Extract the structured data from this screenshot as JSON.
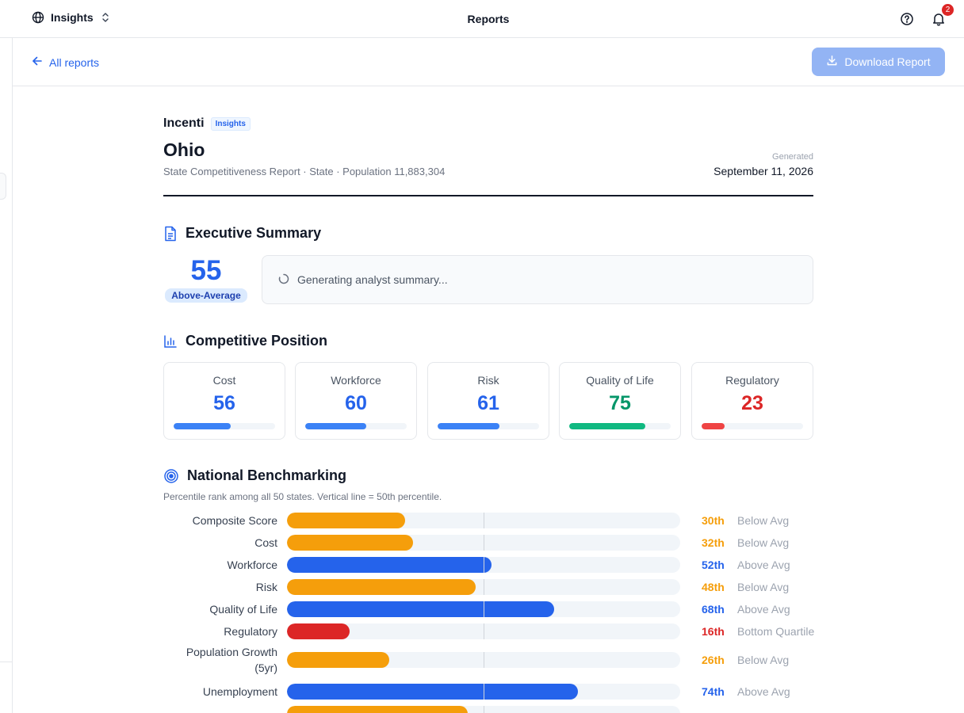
{
  "topbar": {
    "workspace": "Insights",
    "title": "Reports",
    "notifications": "2"
  },
  "subbar": {
    "back": "All reports",
    "download": "Download Report"
  },
  "report": {
    "brand": "Incenti",
    "brand_tag": "Insights",
    "state": "Ohio",
    "meta": "State Competitiveness Report · State · Population 11,883,304",
    "generated_label": "Generated",
    "generated_date": "September 11, 2026"
  },
  "executive": {
    "title": "Executive Summary",
    "score": "55",
    "rating": "Above-Average",
    "summary_status": "Generating analyst summary..."
  },
  "competitive": {
    "title": "Competitive Position",
    "cards": [
      {
        "label": "Cost",
        "value": 56,
        "color": "#2563eb",
        "bar_color": "#3b82f6"
      },
      {
        "label": "Workforce",
        "value": 60,
        "color": "#2563eb",
        "bar_color": "#3b82f6"
      },
      {
        "label": "Risk",
        "value": 61,
        "color": "#2563eb",
        "bar_color": "#3b82f6"
      },
      {
        "label": "Quality of Life",
        "value": 75,
        "color": "#059669",
        "bar_color": "#10b981"
      },
      {
        "label": "Regulatory",
        "value": 23,
        "color": "#dc2626",
        "bar_color": "#ef4444"
      }
    ]
  },
  "benchmark": {
    "title": "National Benchmarking",
    "note": "Percentile rank among all 50 states. Vertical line = 50th percentile.",
    "rows": [
      {
        "label": "Composite Score",
        "value": 30,
        "pct": "30th",
        "band": "Below Avg",
        "color": "#f59e0b",
        "text_color": "#f59e0b"
      },
      {
        "label": "Cost",
        "value": 32,
        "pct": "32th",
        "band": "Below Avg",
        "color": "#f59e0b",
        "text_color": "#f59e0b"
      },
      {
        "label": "Workforce",
        "value": 52,
        "pct": "52th",
        "band": "Above Avg",
        "color": "#2563eb",
        "text_color": "#2563eb"
      },
      {
        "label": "Risk",
        "value": 48,
        "pct": "48th",
        "band": "Below Avg",
        "color": "#f59e0b",
        "text_color": "#f59e0b"
      },
      {
        "label": "Quality of Life",
        "value": 68,
        "pct": "68th",
        "band": "Above Avg",
        "color": "#2563eb",
        "text_color": "#2563eb"
      },
      {
        "label": "Regulatory",
        "value": 16,
        "pct": "16th",
        "band": "Bottom Quartile",
        "color": "#dc2626",
        "text_color": "#dc2626"
      },
      {
        "label": "Population Growth (5yr)",
        "value": 26,
        "pct": "26th",
        "band": "Below Avg",
        "color": "#f59e0b",
        "text_color": "#f59e0b"
      },
      {
        "label": "Unemployment",
        "value": 74,
        "pct": "74th",
        "band": "Above Avg",
        "color": "#2563eb",
        "text_color": "#2563eb"
      },
      {
        "label": "",
        "value": 46,
        "pct": "",
        "band": "",
        "color": "#f59e0b",
        "text_color": "#f59e0b"
      }
    ]
  }
}
